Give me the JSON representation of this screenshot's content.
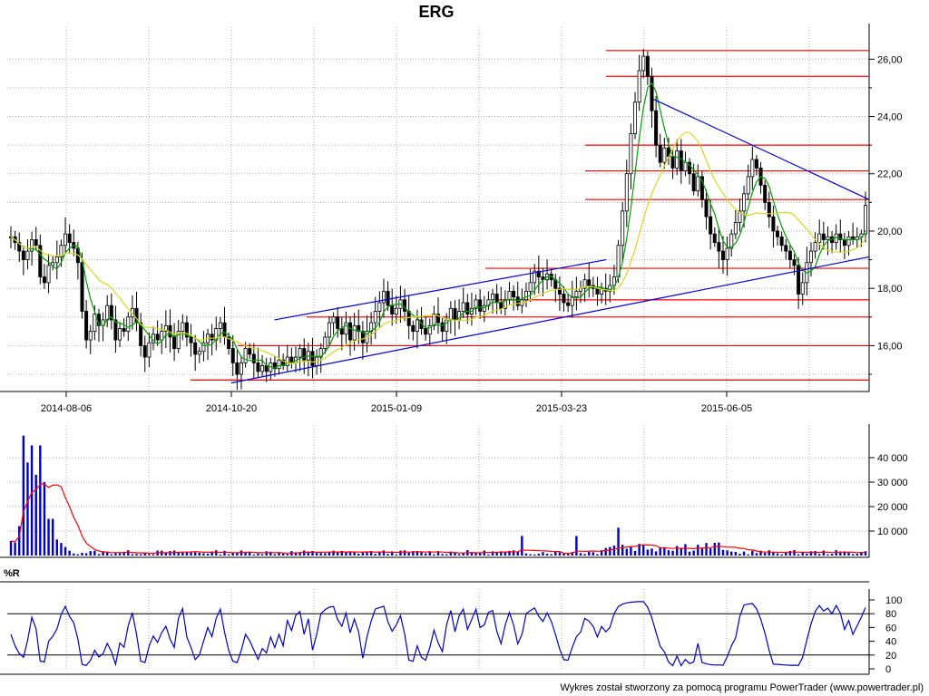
{
  "chart_data": {
    "type": "candlestick",
    "title": "ERG",
    "footer": "Wykres został stworzony za pomocą programu PowerTrader (www.powertrader.pl)",
    "price_panel": {
      "x_ticks": [
        "2014-08-06",
        "2014-10-20",
        "2015-01-09",
        "2015-03-23",
        "2015-06-05"
      ],
      "y_ticks": [
        "16,00",
        "18,00",
        "20,00",
        "22,00",
        "24,00",
        "26,00"
      ],
      "y_values": [
        16,
        18,
        20,
        22,
        24,
        26
      ],
      "ylim": [
        14.4,
        26.8
      ],
      "close_series": [
        19.8,
        19.6,
        19.3,
        19.0,
        19.3,
        19.7,
        19.5,
        18.4,
        18.2,
        18.8,
        18.9,
        19.1,
        19.5,
        19.9,
        19.6,
        19.4,
        18.9,
        17.2,
        16.2,
        16.5,
        17.1,
        16.7,
        16.9,
        17.4,
        16.9,
        16.2,
        16.6,
        16.5,
        17.0,
        17.3,
        16.8,
        16.0,
        15.6,
        16.1,
        16.4,
        16.2,
        16.5,
        16.7,
        16.3,
        15.9,
        16.5,
        16.8,
        16.3,
        16.1,
        15.7,
        15.8,
        16.1,
        16.4,
        16.2,
        16.6,
        16.8,
        16.3,
        15.9,
        15.4,
        15.0,
        15.4,
        15.9,
        15.7,
        15.4,
        15.1,
        15.3,
        15.1,
        15.4,
        15.2,
        15.5,
        15.3,
        15.6,
        15.4,
        15.6,
        15.9,
        15.5,
        15.8,
        15.3,
        15.6,
        15.9,
        16.3,
        16.8,
        17.0,
        16.6,
        16.4,
        16.8,
        16.2,
        16.7,
        16.5,
        16.1,
        16.5,
        16.8,
        17.2,
        17.5,
        17.9,
        17.4,
        17.1,
        17.3,
        17.6,
        17.2,
        16.7,
        16.5,
        16.9,
        16.6,
        16.4,
        16.7,
        17.1,
        16.8,
        16.5,
        16.9,
        17.3,
        16.9,
        17.2,
        17.5,
        17.1,
        17.3,
        17.6,
        17.2,
        17.4,
        17.6,
        17.8,
        17.5,
        17.3,
        17.6,
        17.9,
        17.7,
        17.4,
        17.6,
        17.9,
        18.2,
        18.6,
        18.4,
        18.3,
        18.5,
        18.3,
        18.0,
        17.8,
        17.5,
        17.4,
        17.7,
        17.9,
        18.0,
        18.3,
        18.1,
        18.0,
        17.8,
        18.0,
        17.9,
        18.1,
        18.4,
        19.5,
        20.7,
        22.0,
        23.4,
        24.5,
        25.6,
        26.1,
        25.4,
        24.2,
        23.0,
        22.4,
        22.9,
        22.6,
        22.2,
        22.8,
        22.1,
        22.4,
        22.0,
        21.4,
        21.9,
        21.1,
        20.5,
        19.9,
        19.6,
        19.3,
        19.0,
        19.4,
        19.9,
        20.3,
        20.7,
        21.3,
        21.9,
        22.5,
        22.2,
        21.6,
        21.0,
        20.5,
        20.0,
        19.8,
        19.5,
        19.3,
        19.0,
        18.8,
        17.8,
        18.2,
        18.9,
        19.3,
        19.6,
        19.9,
        19.7,
        19.8,
        19.6,
        19.9,
        19.7,
        19.5,
        19.8,
        19.7,
        19.8,
        19.9,
        20.9
      ],
      "horizontal_levels": [
        14.8,
        16.0,
        17.0,
        17.6,
        18.7,
        21.1,
        22.1,
        23.0,
        25.4,
        26.3
      ],
      "trendlines": [
        {
          "x0": 0.31,
          "y0": 16.9,
          "x1": 0.695,
          "y1": 19.0
        },
        {
          "x0": 0.26,
          "y0": 14.7,
          "x1": 1.0,
          "y1": 19.1
        },
        {
          "x0": 0.75,
          "y0": 24.6,
          "x1": 1.0,
          "y1": 21.1
        }
      ]
    },
    "volume_panel": {
      "y_ticks": [
        "10 000",
        "20 000",
        "30 000",
        "40 000"
      ],
      "y_values": [
        10000,
        20000,
        30000,
        40000
      ],
      "ylim": [
        0,
        50000
      ]
    },
    "wr_panel": {
      "label": "%R",
      "y_ticks": [
        "0",
        "20",
        "40",
        "60",
        "80",
        "100"
      ],
      "y_values": [
        0,
        20,
        40,
        60,
        80,
        100
      ],
      "ylim": [
        0,
        100
      ],
      "ref_lines": [
        20,
        80
      ]
    },
    "colors": {
      "candle": "#000000",
      "sma_short": "#00a000",
      "sma_long": "#d8d820",
      "level_line": "#ff0000",
      "trendline": "#0000dd",
      "volume_bar": "#0000cc",
      "volume_avg": "#ff0000",
      "wr_line": "#0000cc",
      "grid": "#b0b0b0"
    }
  }
}
